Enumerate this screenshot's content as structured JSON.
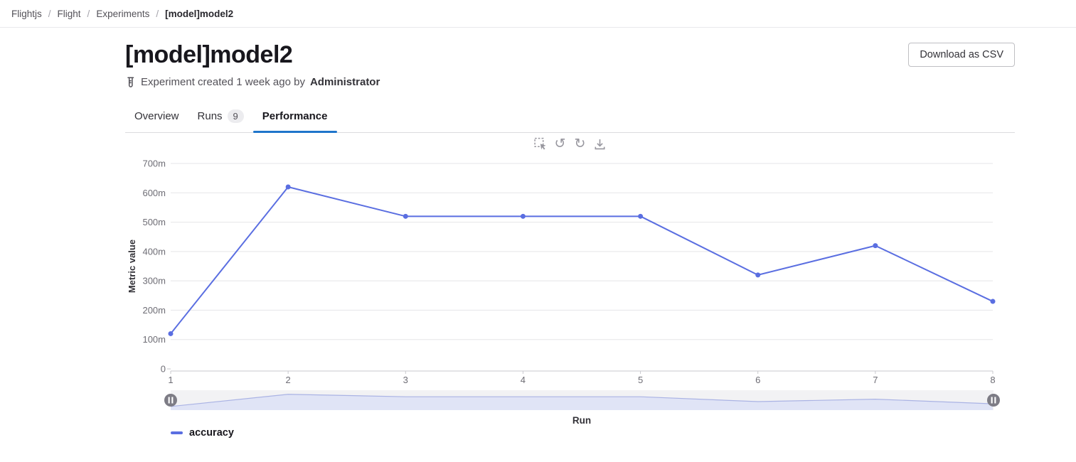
{
  "breadcrumb": {
    "separator": "/",
    "items": [
      "Flightjs",
      "Flight",
      "Experiments",
      "[model]model2"
    ]
  },
  "header": {
    "title": "[model]model2",
    "download_button_label": "Download as CSV",
    "created_text": "Experiment created 1 week ago by",
    "created_by": "Administrator",
    "meta_icon": "test-tube-icon"
  },
  "tabs": [
    {
      "label": "Overview"
    },
    {
      "label": "Runs",
      "badge": "9"
    },
    {
      "label": "Performance",
      "active": true
    }
  ],
  "chart_toolbar": {
    "icons": [
      "zoom-select-icon",
      "undo-icon",
      "redo-icon",
      "download-icon"
    ],
    "undo_glyph": "↺",
    "redo_glyph": "↻"
  },
  "chart_data": {
    "type": "line",
    "title": "",
    "xlabel": "Run",
    "ylabel": "Metric value",
    "categories": [
      "1",
      "2",
      "3",
      "4",
      "5",
      "6",
      "7",
      "8"
    ],
    "series": [
      {
        "name": "accuracy",
        "color": "#5a6ee1",
        "values_milli": [
          120,
          620,
          520,
          520,
          520,
          320,
          420,
          230
        ]
      }
    ],
    "ylim_milli": [
      0,
      700
    ],
    "ytick_step_milli": 100,
    "ytick_labels": [
      "0",
      "100m",
      "200m",
      "300m",
      "400m",
      "500m",
      "600m",
      "700m"
    ],
    "grid": true,
    "legend_position": "bottom-left",
    "has_range_slider": true
  },
  "slider": {
    "left_handle": "pause-handle-icon",
    "right_handle": "pause-handle-icon"
  },
  "colors": {
    "accent_blue": "#1f75cb",
    "series_blue": "#5a6ee1",
    "grid_line": "#e5e5e8",
    "axis_line": "#c9c9ce",
    "tick_text": "#6e6d75",
    "slider_track": "#f2f2f4",
    "slider_area_fill": "#e0e4f6",
    "slider_area_line": "#aab3e4",
    "slider_handle": "#7d7c85"
  }
}
